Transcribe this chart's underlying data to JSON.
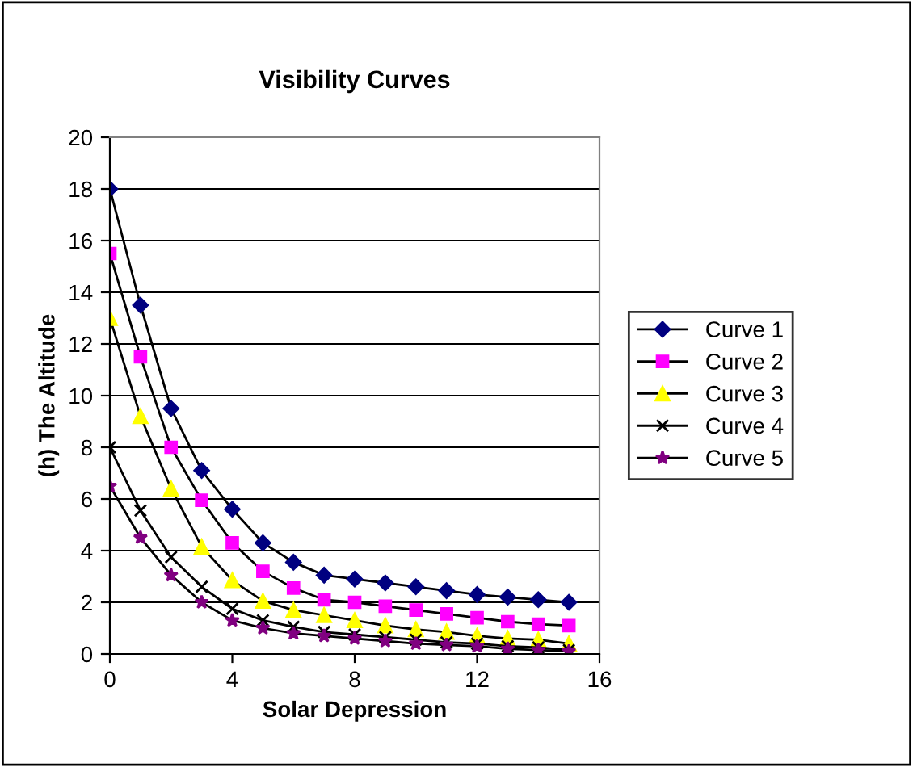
{
  "chart_data": {
    "type": "line",
    "title": "Visibility Curves",
    "xlabel": "Solar Depression",
    "ylabel": "(h) The Altitude",
    "x": [
      0,
      1,
      2,
      3,
      4,
      5,
      6,
      7,
      8,
      9,
      10,
      11,
      12,
      13,
      14,
      15
    ],
    "xlim": [
      0,
      16
    ],
    "xticks": [
      0,
      4,
      8,
      12,
      16
    ],
    "ylim": [
      0,
      20
    ],
    "yticks": [
      0,
      2,
      4,
      6,
      8,
      10,
      12,
      14,
      16,
      18,
      20
    ],
    "grid": "y",
    "legend": "right",
    "series": [
      {
        "name": "Curve 1",
        "color": "#000080",
        "marker": "diamond",
        "values": [
          18,
          13.5,
          9.5,
          7.1,
          5.6,
          4.3,
          3.55,
          3.05,
          2.9,
          2.75,
          2.6,
          2.45,
          2.3,
          2.2,
          2.1,
          2.0
        ]
      },
      {
        "name": "Curve 2",
        "color": "#ff00ff",
        "marker": "square",
        "values": [
          15.5,
          11.5,
          8.0,
          5.95,
          4.3,
          3.2,
          2.55,
          2.1,
          2.0,
          1.85,
          1.7,
          1.55,
          1.4,
          1.25,
          1.15,
          1.1
        ]
      },
      {
        "name": "Curve 3",
        "color": "#ffff00",
        "marker": "triangle",
        "values": [
          13,
          9.2,
          6.4,
          4.15,
          2.85,
          2.05,
          1.7,
          1.5,
          1.3,
          1.1,
          0.95,
          0.85,
          0.7,
          0.6,
          0.55,
          0.4
        ]
      },
      {
        "name": "Curve 4",
        "color": "#000000",
        "marker": "cross",
        "values": [
          8,
          5.55,
          3.75,
          2.6,
          1.75,
          1.3,
          1.05,
          0.85,
          0.75,
          0.65,
          0.55,
          0.45,
          0.4,
          0.3,
          0.25,
          0.15
        ]
      },
      {
        "name": "Curve 5",
        "color": "#800080",
        "marker": "star",
        "values": [
          6.5,
          4.5,
          3.05,
          2.0,
          1.3,
          1.0,
          0.8,
          0.7,
          0.6,
          0.5,
          0.4,
          0.35,
          0.3,
          0.2,
          0.15,
          0.1
        ]
      }
    ]
  }
}
